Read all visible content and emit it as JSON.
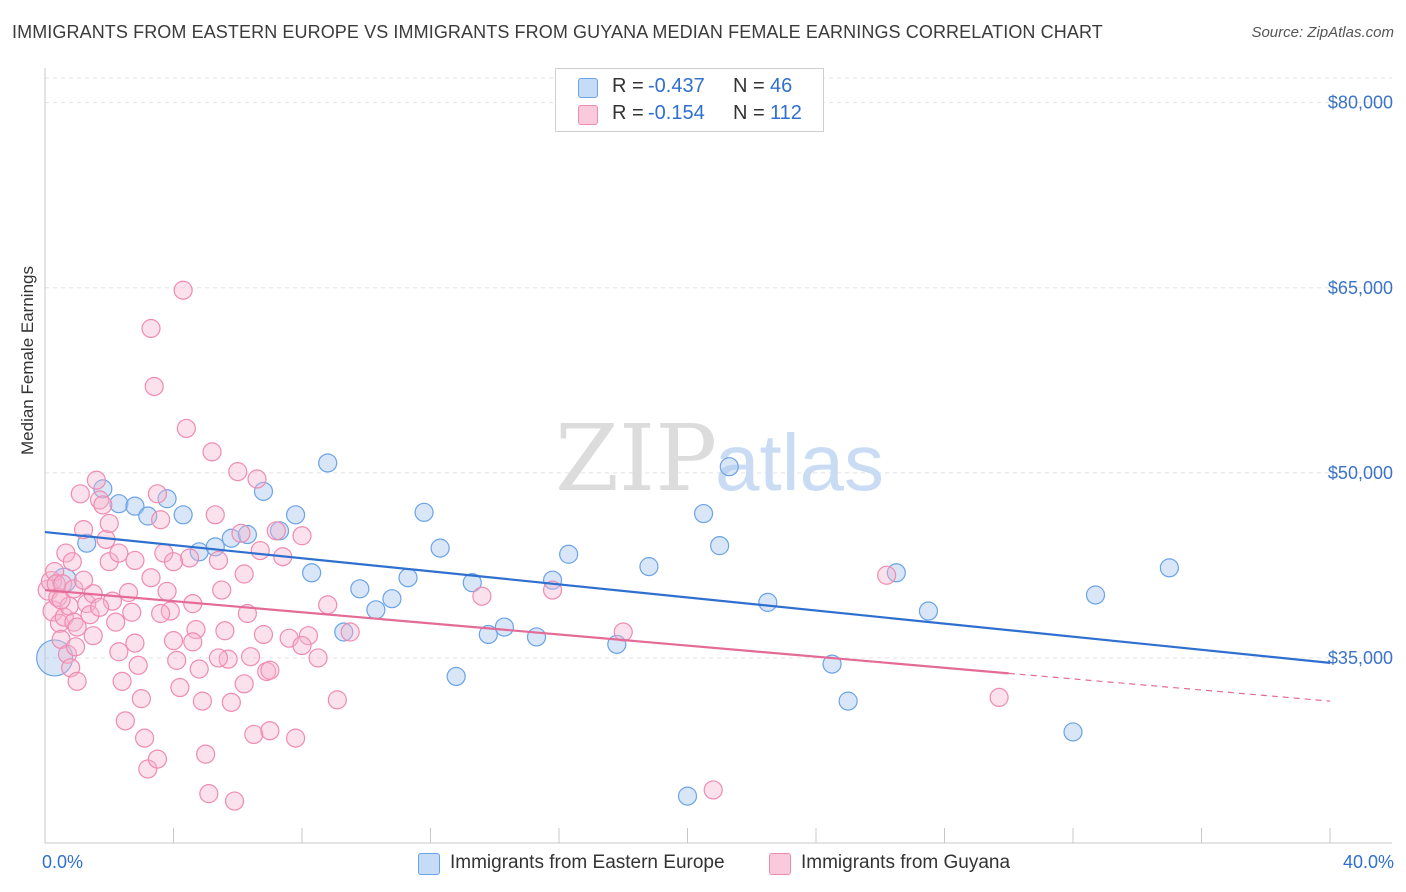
{
  "title": "IMMIGRANTS FROM EASTERN EUROPE VS IMMIGRANTS FROM GUYANA MEDIAN FEMALE EARNINGS CORRELATION CHART",
  "source": "Source: ZipAtlas.com",
  "watermark": {
    "zip": "ZIP",
    "atlas": "atlas"
  },
  "legend": {
    "r_label": "R =",
    "n_label": "N =",
    "series": [
      {
        "name": "Immigrants from Eastern Europe",
        "r": "-0.437",
        "n": "46",
        "color": "#6aa3e8"
      },
      {
        "name": "Immigrants from Guyana",
        "r": "-0.154",
        "n": "112",
        "color": "#f08bb0"
      }
    ]
  },
  "chart_data": {
    "type": "scatter",
    "title": "IMMIGRANTS FROM EASTERN EUROPE VS IMMIGRANTS FROM GUYANA MEDIAN FEMALE EARNINGS CORRELATION CHART",
    "xlabel": "",
    "ylabel": "Median Female Earnings",
    "xlim": [
      0,
      40
    ],
    "ylim": [
      20000,
      82000
    ],
    "x_tick_labels": [
      "0.0%",
      "40.0%"
    ],
    "y_ticks": [
      {
        "value": 80000,
        "label": "$80,000"
      },
      {
        "value": 65000,
        "label": "$65,000"
      },
      {
        "value": 50000,
        "label": "$50,000"
      },
      {
        "value": 35000,
        "label": "$35,000"
      }
    ],
    "series": [
      {
        "name": "Immigrants from Eastern Europe",
        "color": "#6aa3e8",
        "trend": {
          "x0": 0,
          "y0": 45200,
          "x1": 40,
          "y1": 34600,
          "solid_until": 40
        },
        "points": [
          [
            0.3,
            35000,
            18
          ],
          [
            0.6,
            41300,
            12
          ],
          [
            1.3,
            44300,
            9
          ],
          [
            1.8,
            48700,
            9
          ],
          [
            2.3,
            47500,
            9
          ],
          [
            2.8,
            47300,
            9
          ],
          [
            3.2,
            46500,
            9
          ],
          [
            3.8,
            47900,
            9
          ],
          [
            4.3,
            46600,
            9
          ],
          [
            4.8,
            43600,
            9
          ],
          [
            5.3,
            44000,
            9
          ],
          [
            5.8,
            44700,
            9
          ],
          [
            6.3,
            45000,
            9
          ],
          [
            6.8,
            48500,
            9
          ],
          [
            7.3,
            45300,
            9
          ],
          [
            7.8,
            46600,
            9
          ],
          [
            8.3,
            41900,
            9
          ],
          [
            8.8,
            50800,
            9
          ],
          [
            9.3,
            37100,
            9
          ],
          [
            9.8,
            40600,
            9
          ],
          [
            10.3,
            38900,
            9
          ],
          [
            10.8,
            39800,
            9
          ],
          [
            11.3,
            41500,
            9
          ],
          [
            11.8,
            46800,
            9
          ],
          [
            12.3,
            43900,
            9
          ],
          [
            12.8,
            33500,
            9
          ],
          [
            13.3,
            41100,
            9
          ],
          [
            13.8,
            36900,
            9
          ],
          [
            14.3,
            37500,
            9
          ],
          [
            15.3,
            36700,
            9
          ],
          [
            15.8,
            41300,
            9
          ],
          [
            16.3,
            43400,
            9
          ],
          [
            17.8,
            36100,
            9
          ],
          [
            18.8,
            42400,
            9
          ],
          [
            20.0,
            23800,
            9
          ],
          [
            20.5,
            46700,
            9
          ],
          [
            21.0,
            44100,
            9
          ],
          [
            21.3,
            50500,
            9
          ],
          [
            22.5,
            39500,
            9
          ],
          [
            24.5,
            34500,
            9
          ],
          [
            25.0,
            31500,
            9
          ],
          [
            26.5,
            41900,
            9
          ],
          [
            27.5,
            38800,
            9
          ],
          [
            32.0,
            29000,
            9
          ],
          [
            32.7,
            40100,
            9
          ],
          [
            35.0,
            42300,
            9
          ]
        ]
      },
      {
        "name": "Immigrants from Guyana",
        "color": "#f08bb0",
        "trend": {
          "x0": 0,
          "y0": 40500,
          "x1": 40,
          "y1": 31500,
          "solid_until": 30
        },
        "points": [
          [
            0.1,
            40500,
            10
          ],
          [
            0.2,
            41200,
            10
          ],
          [
            0.25,
            38800,
            10
          ],
          [
            0.3,
            42000,
            9
          ],
          [
            0.35,
            41000,
            9
          ],
          [
            0.4,
            39900,
            9
          ],
          [
            0.45,
            37800,
            9
          ],
          [
            0.5,
            36500,
            9
          ],
          [
            0.55,
            41000,
            9
          ],
          [
            0.6,
            38300,
            9
          ],
          [
            0.65,
            43500,
            9
          ],
          [
            0.7,
            35300,
            9
          ],
          [
            0.75,
            39200,
            9
          ],
          [
            0.8,
            34200,
            9
          ],
          [
            0.85,
            42800,
            9
          ],
          [
            0.9,
            37900,
            9
          ],
          [
            0.95,
            35900,
            9
          ],
          [
            1.0,
            33100,
            9
          ],
          [
            1.1,
            48300,
            9
          ],
          [
            1.2,
            45400,
            9
          ],
          [
            1.3,
            39400,
            9
          ],
          [
            1.4,
            38500,
            9
          ],
          [
            1.5,
            36800,
            9
          ],
          [
            1.6,
            49400,
            9
          ],
          [
            1.7,
            47800,
            9
          ],
          [
            1.8,
            47400,
            9
          ],
          [
            1.9,
            44600,
            9
          ],
          [
            2.0,
            42800,
            9
          ],
          [
            2.1,
            39600,
            9
          ],
          [
            2.2,
            37900,
            9
          ],
          [
            2.3,
            35500,
            9
          ],
          [
            2.4,
            33100,
            9
          ],
          [
            2.5,
            29900,
            9
          ],
          [
            2.6,
            40300,
            9
          ],
          [
            2.7,
            38700,
            9
          ],
          [
            2.8,
            36200,
            9
          ],
          [
            2.9,
            34400,
            9
          ],
          [
            3.0,
            31700,
            9
          ],
          [
            3.1,
            28500,
            9
          ],
          [
            3.2,
            26000,
            9
          ],
          [
            3.3,
            61700,
            9
          ],
          [
            3.4,
            57000,
            9
          ],
          [
            3.5,
            48300,
            9
          ],
          [
            3.6,
            46200,
            9
          ],
          [
            3.7,
            43500,
            9
          ],
          [
            3.8,
            40400,
            9
          ],
          [
            3.9,
            38800,
            9
          ],
          [
            4.0,
            36400,
            9
          ],
          [
            4.1,
            34800,
            9
          ],
          [
            4.2,
            32600,
            9
          ],
          [
            4.3,
            64800,
            9
          ],
          [
            4.4,
            53600,
            9
          ],
          [
            4.5,
            43100,
            9
          ],
          [
            4.6,
            39400,
            9
          ],
          [
            4.7,
            37300,
            9
          ],
          [
            4.8,
            34100,
            9
          ],
          [
            4.9,
            31500,
            9
          ],
          [
            5.0,
            27200,
            9
          ],
          [
            5.1,
            24000,
            9
          ],
          [
            5.2,
            51700,
            9
          ],
          [
            5.3,
            46600,
            9
          ],
          [
            5.4,
            42900,
            9
          ],
          [
            5.5,
            40500,
            9
          ],
          [
            5.6,
            37200,
            9
          ],
          [
            5.7,
            34900,
            9
          ],
          [
            5.8,
            31400,
            9
          ],
          [
            5.9,
            23400,
            9
          ],
          [
            6.0,
            50100,
            9
          ],
          [
            6.1,
            45100,
            9
          ],
          [
            6.2,
            41800,
            9
          ],
          [
            6.3,
            38600,
            9
          ],
          [
            6.4,
            35100,
            9
          ],
          [
            6.5,
            28800,
            9
          ],
          [
            6.6,
            49500,
            9
          ],
          [
            6.7,
            43700,
            9
          ],
          [
            6.8,
            36900,
            9
          ],
          [
            6.9,
            33900,
            9
          ],
          [
            7.0,
            29100,
            9
          ],
          [
            7.2,
            45300,
            9
          ],
          [
            7.4,
            43200,
            9
          ],
          [
            7.6,
            36600,
            9
          ],
          [
            7.8,
            28500,
            9
          ],
          [
            8.0,
            44900,
            9
          ],
          [
            8.2,
            36800,
            9
          ],
          [
            8.5,
            35000,
            9
          ],
          [
            8.8,
            39300,
            9
          ],
          [
            9.1,
            31600,
            9
          ],
          [
            9.5,
            37100,
            9
          ],
          [
            3.3,
            41500,
            9
          ],
          [
            2.0,
            45900,
            9
          ],
          [
            1.5,
            40200,
            9
          ],
          [
            1.0,
            37500,
            9
          ],
          [
            2.8,
            42900,
            9
          ],
          [
            3.6,
            38600,
            9
          ],
          [
            4.0,
            42800,
            9
          ],
          [
            0.5,
            39700,
            9
          ],
          [
            0.9,
            40600,
            9
          ],
          [
            1.2,
            41300,
            9
          ],
          [
            1.7,
            39100,
            9
          ],
          [
            2.3,
            43500,
            9
          ],
          [
            4.6,
            36300,
            9
          ],
          [
            5.4,
            35000,
            9
          ],
          [
            6.2,
            32900,
            9
          ],
          [
            7.0,
            34000,
            9
          ],
          [
            8.0,
            36000,
            9
          ],
          [
            13.6,
            40000,
            9
          ],
          [
            15.8,
            40500,
            9
          ],
          [
            18.0,
            37100,
            9
          ],
          [
            20.8,
            24300,
            9
          ],
          [
            26.2,
            41700,
            9
          ],
          [
            29.7,
            31800,
            9
          ],
          [
            3.5,
            26800,
            9
          ]
        ]
      }
    ]
  }
}
